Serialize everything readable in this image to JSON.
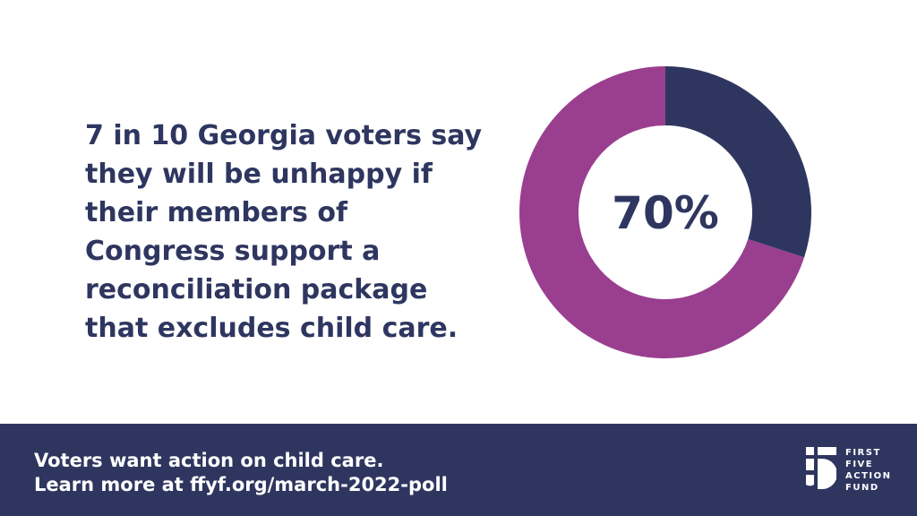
{
  "headline": {
    "lines": [
      "7 in 10 Georgia voters say",
      "they will be unhappy if",
      "their members of",
      "Congress support a",
      "reconciliation package",
      "that excludes child care."
    ]
  },
  "chart_data": {
    "type": "pie",
    "variant": "donut",
    "center_label": "70%",
    "slices": [
      {
        "value": 70,
        "color": "#9a3f8f"
      },
      {
        "value": 30,
        "color": "#2e3660"
      }
    ]
  },
  "footer": {
    "lines": [
      "Voters want action on child care.",
      "Learn more at ffyf.org/march-2022-poll"
    ]
  },
  "logo": {
    "lines": [
      "FIRST",
      "FIVE",
      "ACTION",
      "FUND"
    ]
  },
  "colors": {
    "navy": "#2e3660",
    "purple": "#9a3f8f"
  }
}
